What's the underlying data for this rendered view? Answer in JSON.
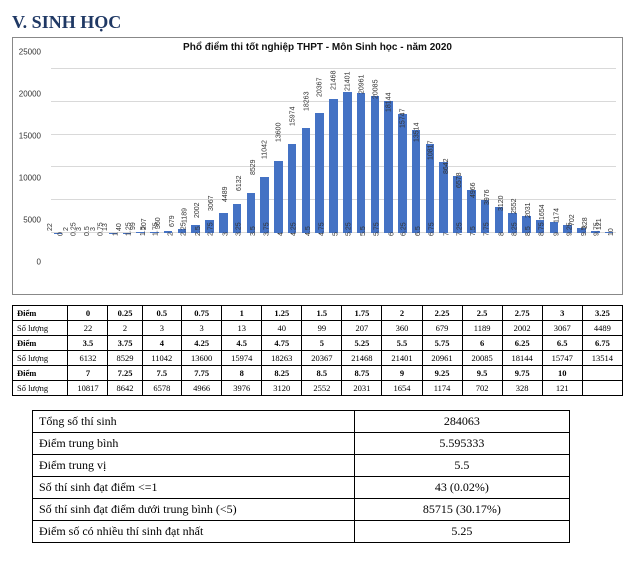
{
  "section_title": "V.  SINH HỌC",
  "chart": {
    "title": "Phổ điểm thi tốt nghiệp THPT - Môn Sinh học - năm 2020",
    "type": "bar",
    "bar_color": "#4472c4",
    "background_color": "#ffffff",
    "grid_color": "#d9d9d9",
    "ylim": [
      0,
      25000
    ],
    "ytick_step": 5000,
    "categories": [
      "0",
      "0.25",
      "0.5",
      "0.75",
      "1",
      "1.25",
      "1.5",
      "1.75",
      "2",
      "2.25",
      "2.5",
      "2.75",
      "3",
      "3.25",
      "3.5",
      "3.75",
      "4",
      "4.25",
      "4.5",
      "4.75",
      "5",
      "5.25",
      "5.5",
      "5.75",
      "6",
      "6.25",
      "6.5",
      "6.75",
      "7",
      "7.25",
      "7.5",
      "7.75",
      "8",
      "8.25",
      "8.5",
      "8.75",
      "9",
      "9.25",
      "9.5",
      "9.75",
      "10"
    ],
    "values": [
      22,
      2,
      3,
      3,
      13,
      40,
      99,
      207,
      360,
      679,
      1189,
      2002,
      3067,
      4489,
      6132,
      8529,
      11042,
      13600,
      15974,
      18263,
      20367,
      21468,
      21401,
      20961,
      20085,
      18144,
      15747,
      13514,
      10817,
      8642,
      6578,
      4966,
      3976,
      3120,
      2552,
      2031,
      1654,
      1174,
      702,
      328,
      121
    ],
    "title_fontsize": 10,
    "tick_fontsize": 8,
    "label_fontsize": 7
  },
  "data_table": {
    "row_label_score": "Điểm",
    "row_label_count": "Số lượng",
    "rows": [
      {
        "scores": [
          "0",
          "0.25",
          "0.5",
          "0.75",
          "1",
          "1.25",
          "1.5",
          "1.75",
          "2",
          "2.25",
          "2.5",
          "2.75",
          "3",
          "3.25"
        ],
        "counts": [
          "22",
          "2",
          "3",
          "3",
          "13",
          "40",
          "99",
          "207",
          "360",
          "679",
          "1189",
          "2002",
          "3067",
          "4489"
        ]
      },
      {
        "scores": [
          "3.5",
          "3.75",
          "4",
          "4.25",
          "4.5",
          "4.75",
          "5",
          "5.25",
          "5.5",
          "5.75",
          "6",
          "6.25",
          "6.5",
          "6.75"
        ],
        "counts": [
          "6132",
          "8529",
          "11042",
          "13600",
          "15974",
          "18263",
          "20367",
          "21468",
          "21401",
          "20961",
          "20085",
          "18144",
          "15747",
          "13514"
        ]
      },
      {
        "scores": [
          "7",
          "7.25",
          "7.5",
          "7.75",
          "8",
          "8.25",
          "8.5",
          "8.75",
          "9",
          "9.25",
          "9.5",
          "9.75",
          "10",
          ""
        ],
        "counts": [
          "10817",
          "8642",
          "6578",
          "4966",
          "3976",
          "3120",
          "2552",
          "2031",
          "1654",
          "1174",
          "702",
          "328",
          "121",
          ""
        ]
      }
    ]
  },
  "summary": [
    {
      "label": "Tổng số thí sinh",
      "value": "284063"
    },
    {
      "label": "Điểm trung bình",
      "value": "5.595333"
    },
    {
      "label": "Điểm trung vị",
      "value": "5.5"
    },
    {
      "label": "Số thí sinh đạt điểm <=1",
      "value": "43 (0.02%)"
    },
    {
      "label": "Số thí sinh đạt điểm dưới trung bình (<5)",
      "value": "85715 (30.17%)"
    },
    {
      "label": "Điểm số có nhiều thí sinh đạt nhất",
      "value": "5.25"
    }
  ]
}
